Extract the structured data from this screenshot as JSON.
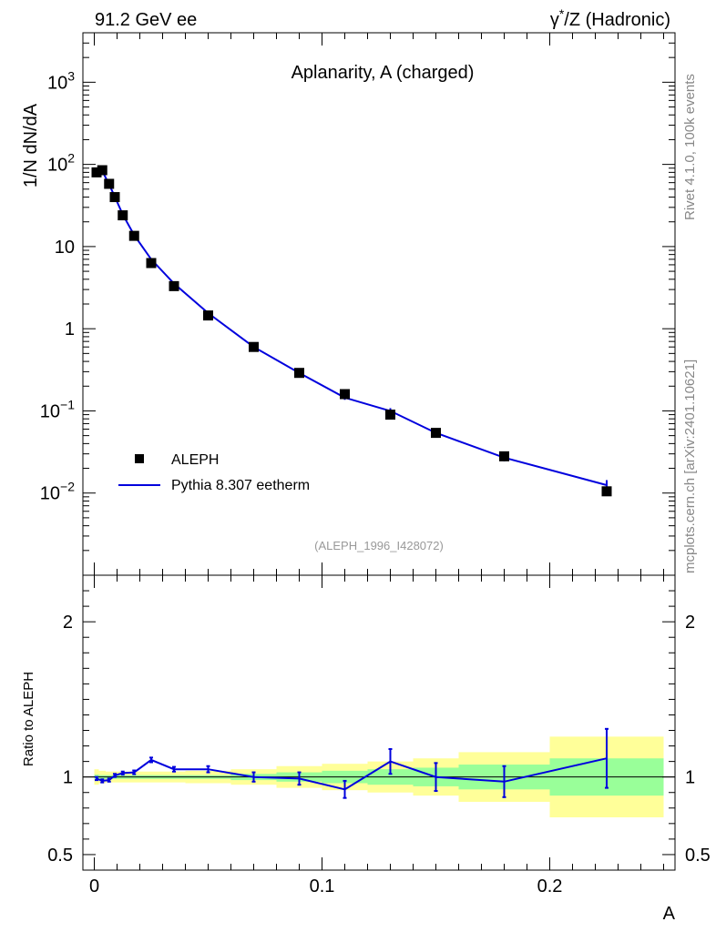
{
  "header": {
    "left_title": "91.2 GeV ee",
    "right_title_base": "γ",
    "right_title_sup": "*",
    "right_title_rest": "/Z (Hadronic)"
  },
  "side_labels": {
    "rivet": "Rivet 4.1.0,  100k events",
    "mcplots": "mcplots.cern.ch [arXiv:2401.10621]"
  },
  "colors": {
    "data_marker": "#000000",
    "mc_line": "#0000dd",
    "band_yellow": "#ffff99",
    "band_green": "#99ff99"
  },
  "chart_data": [
    {
      "type": "scatter",
      "title": "Aplanarity, A (charged)",
      "analysis_id": "(ALEPH_1996_I428072)",
      "ylabel": "1/N  dN/dA",
      "xlabel": "A",
      "yscale": "log",
      "xlim": [
        -0.005,
        0.255
      ],
      "ylim": [
        0.001,
        4000
      ],
      "y_tick_labels": [
        {
          "value": 0.01,
          "base": "10",
          "exp": "−2"
        },
        {
          "value": 0.1,
          "base": "10",
          "exp": "−1"
        },
        {
          "value": 1,
          "base": "1",
          "exp": ""
        },
        {
          "value": 10,
          "base": "10",
          "exp": ""
        },
        {
          "value": 100,
          "base": "10",
          "exp": "2"
        },
        {
          "value": 1000,
          "base": "10",
          "exp": "3"
        }
      ],
      "legend": [
        {
          "name": "ALEPH",
          "kind": "marker"
        },
        {
          "name": "Pythia 8.307 eetherm",
          "kind": "line"
        }
      ],
      "series": [
        {
          "name": "ALEPH",
          "x": [
            0.001,
            0.0035,
            0.0065,
            0.009,
            0.0125,
            0.0175,
            0.025,
            0.035,
            0.05,
            0.07,
            0.09,
            0.11,
            0.13,
            0.15,
            0.18,
            0.225
          ],
          "y": [
            80,
            85,
            58,
            40,
            24,
            13.5,
            6.3,
            3.3,
            1.45,
            0.6,
            0.29,
            0.16,
            0.09,
            0.054,
            0.028,
            0.0105
          ]
        },
        {
          "name": "Pythia 8.307 eetherm",
          "x": [
            0.001,
            0.0035,
            0.0065,
            0.009,
            0.0125,
            0.0175,
            0.025,
            0.035,
            0.05,
            0.07,
            0.09,
            0.11,
            0.13,
            0.15,
            0.18,
            0.225
          ],
          "y": [
            79,
            83,
            57,
            40.5,
            24.5,
            13.8,
            7.0,
            3.55,
            1.55,
            0.6,
            0.29,
            0.145,
            0.1,
            0.054,
            0.027,
            0.0125
          ],
          "err": [
            0.02,
            0.02,
            0.02,
            0.02,
            0.02,
            0.02,
            0.02,
            0.02,
            0.02,
            0.03,
            0.04,
            0.06,
            0.08,
            0.09,
            0.1,
            0.15
          ]
        }
      ]
    },
    {
      "type": "line",
      "ylabel": "Ratio to ALEPH",
      "xlabel": "A",
      "xlim": [
        -0.005,
        0.255
      ],
      "ylim": [
        0.4,
        2.3
      ],
      "reference": 1,
      "y_tick_labels": [
        {
          "value": 0.5,
          "label": "0.5"
        },
        {
          "value": 1,
          "label": "1"
        },
        {
          "value": 2,
          "label": "2"
        }
      ],
      "x_tick_labels": [
        {
          "value": 0,
          "label": "0"
        },
        {
          "value": 0.1,
          "label": "0.1"
        },
        {
          "value": 0.2,
          "label": "0.2"
        }
      ],
      "bands": [
        {
          "x0": 0.0,
          "x1": 0.002,
          "inner": 0.015,
          "outer": 0.05
        },
        {
          "x0": 0.002,
          "x1": 0.005,
          "inner": 0.012,
          "outer": 0.04
        },
        {
          "x0": 0.005,
          "x1": 0.008,
          "inner": 0.012,
          "outer": 0.035
        },
        {
          "x0": 0.008,
          "x1": 0.01,
          "inner": 0.012,
          "outer": 0.035
        },
        {
          "x0": 0.01,
          "x1": 0.015,
          "inner": 0.012,
          "outer": 0.035
        },
        {
          "x0": 0.015,
          "x1": 0.02,
          "inner": 0.012,
          "outer": 0.035
        },
        {
          "x0": 0.02,
          "x1": 0.03,
          "inner": 0.012,
          "outer": 0.035
        },
        {
          "x0": 0.03,
          "x1": 0.04,
          "inner": 0.012,
          "outer": 0.035
        },
        {
          "x0": 0.04,
          "x1": 0.06,
          "inner": 0.012,
          "outer": 0.04
        },
        {
          "x0": 0.06,
          "x1": 0.08,
          "inner": 0.02,
          "outer": 0.05
        },
        {
          "x0": 0.08,
          "x1": 0.1,
          "inner": 0.03,
          "outer": 0.07
        },
        {
          "x0": 0.1,
          "x1": 0.12,
          "inner": 0.04,
          "outer": 0.085
        },
        {
          "x0": 0.12,
          "x1": 0.14,
          "inner": 0.05,
          "outer": 0.1
        },
        {
          "x0": 0.14,
          "x1": 0.16,
          "inner": 0.06,
          "outer": 0.12
        },
        {
          "x0": 0.16,
          "x1": 0.2,
          "inner": 0.08,
          "outer": 0.16
        },
        {
          "x0": 0.2,
          "x1": 0.25,
          "inner": 0.12,
          "outer": 0.26
        }
      ],
      "series": [
        {
          "name": "Pythia 8.307 eetherm",
          "x": [
            0.001,
            0.0035,
            0.0065,
            0.009,
            0.0125,
            0.0175,
            0.025,
            0.035,
            0.05,
            0.07,
            0.09,
            0.11,
            0.13,
            0.15,
            0.18,
            0.225
          ],
          "y": [
            0.99,
            0.975,
            0.98,
            1.01,
            1.025,
            1.03,
            1.11,
            1.05,
            1.05,
            1.0,
            0.99,
            0.92,
            1.1,
            1.0,
            0.97,
            1.12
          ],
          "err": [
            0.01,
            0.01,
            0.01,
            0.01,
            0.01,
            0.012,
            0.015,
            0.015,
            0.02,
            0.03,
            0.04,
            0.055,
            0.08,
            0.09,
            0.1,
            0.19
          ]
        }
      ]
    }
  ]
}
